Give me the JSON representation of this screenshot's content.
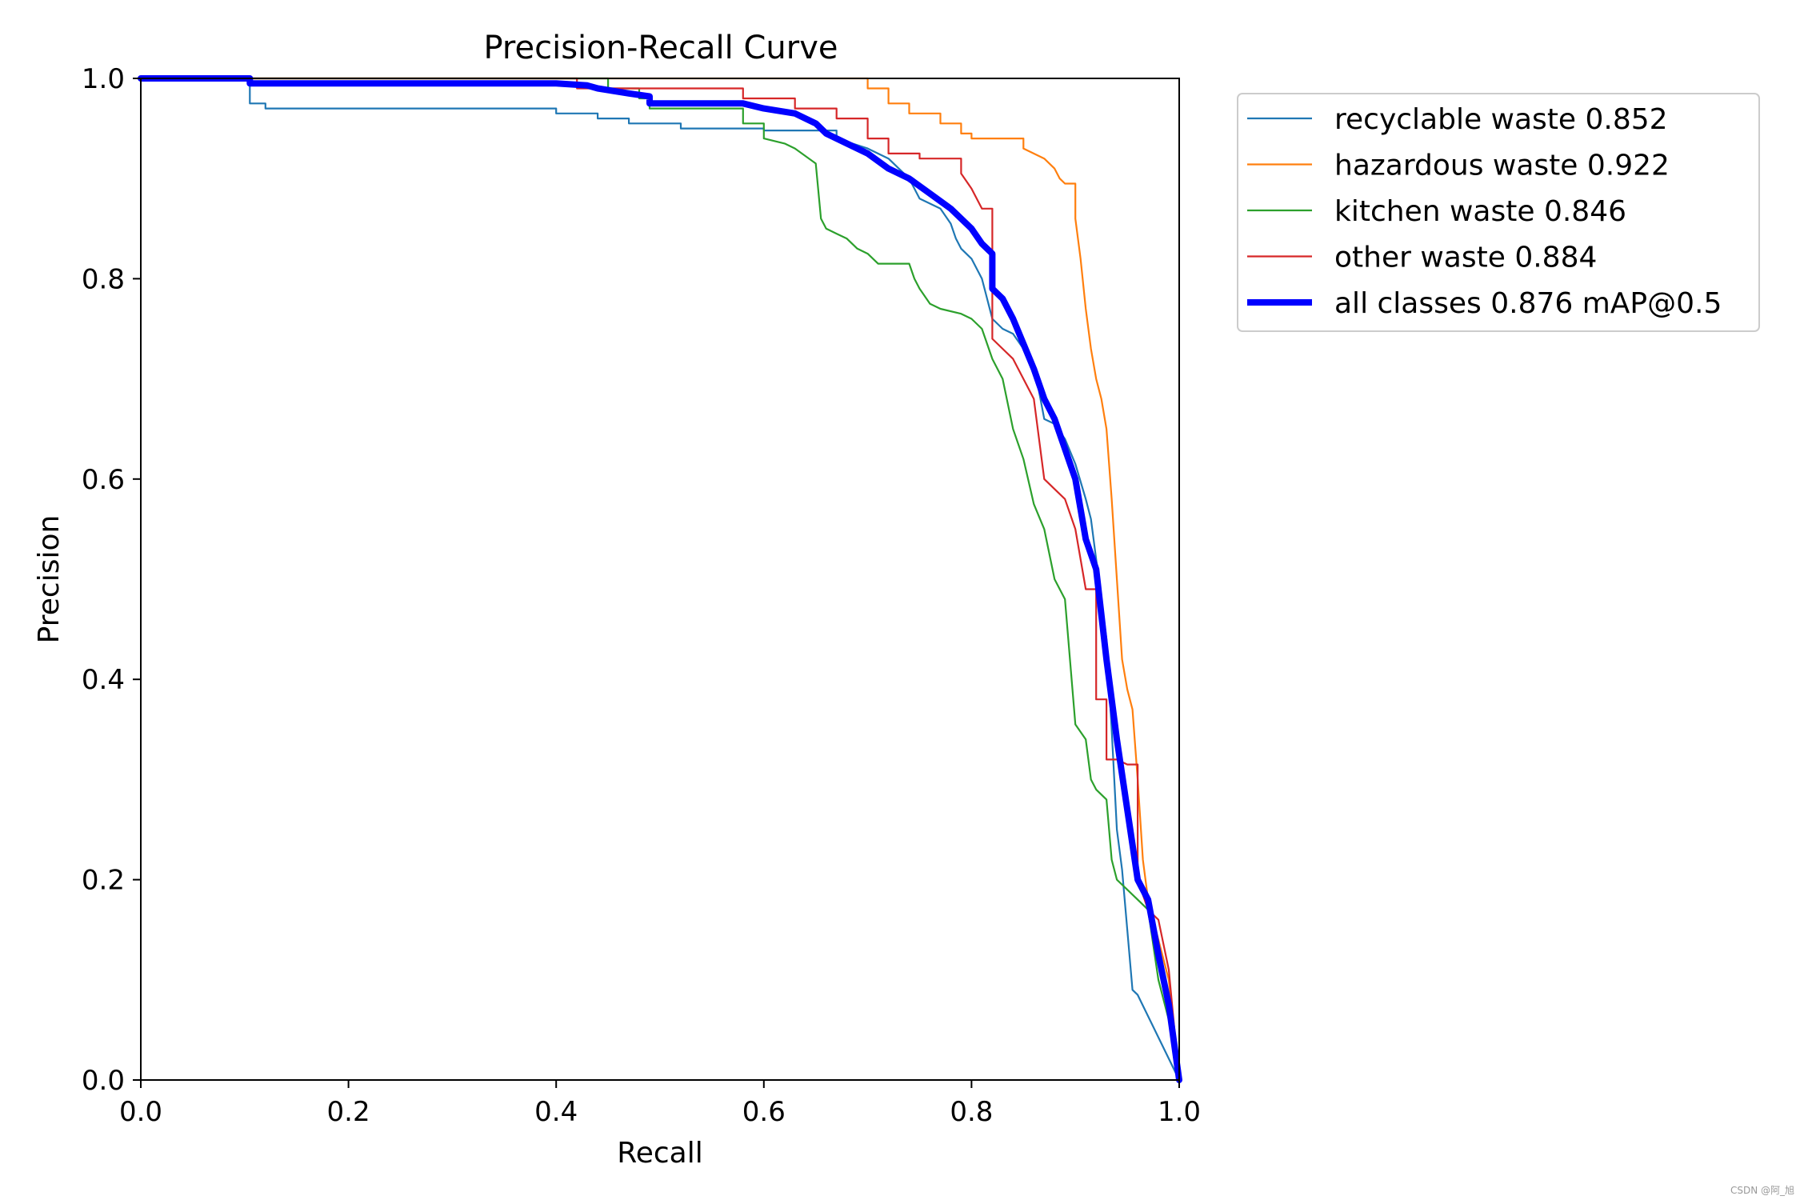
{
  "chart_data": {
    "type": "line",
    "title": "Precision-Recall Curve",
    "xlabel": "Recall",
    "ylabel": "Precision",
    "xlim": [
      0,
      1
    ],
    "ylim": [
      0,
      1
    ],
    "grid": false,
    "legend_position": "outside-top-right",
    "x_ticks": [
      0.0,
      0.2,
      0.4,
      0.6,
      0.8,
      1.0
    ],
    "y_ticks": [
      0.0,
      0.2,
      0.4,
      0.6,
      0.8,
      1.0
    ],
    "x_tick_labels": [
      "0.0",
      "0.2",
      "0.4",
      "0.6",
      "0.8",
      "1.0"
    ],
    "y_tick_labels": [
      "0.0",
      "0.2",
      "0.4",
      "0.6",
      "0.8",
      "1.0"
    ],
    "series": [
      {
        "name": "recyclable waste 0.852",
        "color": "#1f77b4",
        "emphasis": "normal",
        "points": [
          [
            0,
            1
          ],
          [
            0.105,
            1
          ],
          [
            0.105,
            0.975
          ],
          [
            0.12,
            0.975
          ],
          [
            0.12,
            0.97
          ],
          [
            0.4,
            0.97
          ],
          [
            0.4,
            0.965
          ],
          [
            0.44,
            0.965
          ],
          [
            0.44,
            0.96
          ],
          [
            0.47,
            0.96
          ],
          [
            0.47,
            0.955
          ],
          [
            0.52,
            0.955
          ],
          [
            0.52,
            0.95
          ],
          [
            0.6,
            0.95
          ],
          [
            0.6,
            0.948
          ],
          [
            0.67,
            0.948
          ],
          [
            0.67,
            0.94
          ],
          [
            0.7,
            0.93
          ],
          [
            0.72,
            0.92
          ],
          [
            0.74,
            0.9
          ],
          [
            0.75,
            0.88
          ],
          [
            0.76,
            0.875
          ],
          [
            0.77,
            0.87
          ],
          [
            0.78,
            0.855
          ],
          [
            0.785,
            0.84
          ],
          [
            0.79,
            0.83
          ],
          [
            0.8,
            0.82
          ],
          [
            0.81,
            0.8
          ],
          [
            0.815,
            0.78
          ],
          [
            0.82,
            0.76
          ],
          [
            0.83,
            0.75
          ],
          [
            0.84,
            0.745
          ],
          [
            0.85,
            0.73
          ],
          [
            0.86,
            0.715
          ],
          [
            0.87,
            0.66
          ],
          [
            0.88,
            0.655
          ],
          [
            0.89,
            0.64
          ],
          [
            0.9,
            0.615
          ],
          [
            0.91,
            0.58
          ],
          [
            0.915,
            0.56
          ],
          [
            0.92,
            0.52
          ],
          [
            0.93,
            0.44
          ],
          [
            0.935,
            0.35
          ],
          [
            0.94,
            0.25
          ],
          [
            0.945,
            0.21
          ],
          [
            0.95,
            0.15
          ],
          [
            0.955,
            0.09
          ],
          [
            0.96,
            0.085
          ],
          [
            1,
            0
          ]
        ]
      },
      {
        "name": "hazardous waste 0.922",
        "color": "#ff7f0e",
        "emphasis": "normal",
        "points": [
          [
            0,
            1
          ],
          [
            0.7,
            1
          ],
          [
            0.7,
            0.99
          ],
          [
            0.72,
            0.99
          ],
          [
            0.72,
            0.975
          ],
          [
            0.74,
            0.975
          ],
          [
            0.74,
            0.965
          ],
          [
            0.77,
            0.965
          ],
          [
            0.77,
            0.955
          ],
          [
            0.79,
            0.955
          ],
          [
            0.79,
            0.945
          ],
          [
            0.8,
            0.945
          ],
          [
            0.8,
            0.94
          ],
          [
            0.85,
            0.94
          ],
          [
            0.85,
            0.93
          ],
          [
            0.87,
            0.92
          ],
          [
            0.88,
            0.91
          ],
          [
            0.885,
            0.9
          ],
          [
            0.89,
            0.895
          ],
          [
            0.9,
            0.895
          ],
          [
            0.9,
            0.86
          ],
          [
            0.905,
            0.82
          ],
          [
            0.91,
            0.77
          ],
          [
            0.915,
            0.73
          ],
          [
            0.92,
            0.7
          ],
          [
            0.925,
            0.68
          ],
          [
            0.93,
            0.65
          ],
          [
            0.935,
            0.58
          ],
          [
            0.94,
            0.5
          ],
          [
            0.945,
            0.42
          ],
          [
            0.95,
            0.39
          ],
          [
            0.955,
            0.37
          ],
          [
            0.96,
            0.3
          ],
          [
            0.965,
            0.22
          ],
          [
            0.97,
            0.18
          ],
          [
            0.975,
            0.16
          ],
          [
            0.98,
            0.14
          ],
          [
            0.99,
            0.1
          ],
          [
            1,
            0
          ]
        ]
      },
      {
        "name": "kitchen waste 0.846",
        "color": "#2ca02c",
        "emphasis": "normal",
        "points": [
          [
            0,
            1
          ],
          [
            0.45,
            1
          ],
          [
            0.45,
            0.99
          ],
          [
            0.48,
            0.99
          ],
          [
            0.48,
            0.98
          ],
          [
            0.49,
            0.98
          ],
          [
            0.49,
            0.97
          ],
          [
            0.58,
            0.97
          ],
          [
            0.58,
            0.955
          ],
          [
            0.6,
            0.955
          ],
          [
            0.6,
            0.94
          ],
          [
            0.62,
            0.935
          ],
          [
            0.63,
            0.93
          ],
          [
            0.65,
            0.915
          ],
          [
            0.655,
            0.86
          ],
          [
            0.66,
            0.85
          ],
          [
            0.67,
            0.845
          ],
          [
            0.68,
            0.84
          ],
          [
            0.69,
            0.83
          ],
          [
            0.7,
            0.825
          ],
          [
            0.71,
            0.815
          ],
          [
            0.74,
            0.815
          ],
          [
            0.745,
            0.8
          ],
          [
            0.75,
            0.79
          ],
          [
            0.76,
            0.775
          ],
          [
            0.77,
            0.77
          ],
          [
            0.79,
            0.765
          ],
          [
            0.8,
            0.76
          ],
          [
            0.81,
            0.75
          ],
          [
            0.82,
            0.72
          ],
          [
            0.83,
            0.7
          ],
          [
            0.84,
            0.65
          ],
          [
            0.85,
            0.62
          ],
          [
            0.86,
            0.575
          ],
          [
            0.87,
            0.55
          ],
          [
            0.88,
            0.5
          ],
          [
            0.89,
            0.48
          ],
          [
            0.9,
            0.355
          ],
          [
            0.91,
            0.34
          ],
          [
            0.915,
            0.3
          ],
          [
            0.92,
            0.29
          ],
          [
            0.93,
            0.28
          ],
          [
            0.935,
            0.22
          ],
          [
            0.94,
            0.2
          ],
          [
            0.95,
            0.19
          ],
          [
            0.96,
            0.18
          ],
          [
            0.97,
            0.17
          ],
          [
            0.98,
            0.1
          ],
          [
            0.99,
            0.06
          ],
          [
            1,
            0
          ]
        ]
      },
      {
        "name": "other waste 0.884",
        "color": "#d62728",
        "emphasis": "normal",
        "points": [
          [
            0,
            1
          ],
          [
            0.42,
            1
          ],
          [
            0.42,
            0.99
          ],
          [
            0.58,
            0.99
          ],
          [
            0.58,
            0.98
          ],
          [
            0.63,
            0.98
          ],
          [
            0.63,
            0.97
          ],
          [
            0.67,
            0.97
          ],
          [
            0.67,
            0.96
          ],
          [
            0.7,
            0.96
          ],
          [
            0.7,
            0.94
          ],
          [
            0.72,
            0.94
          ],
          [
            0.72,
            0.925
          ],
          [
            0.75,
            0.925
          ],
          [
            0.75,
            0.92
          ],
          [
            0.79,
            0.92
          ],
          [
            0.79,
            0.905
          ],
          [
            0.8,
            0.89
          ],
          [
            0.81,
            0.87
          ],
          [
            0.82,
            0.87
          ],
          [
            0.82,
            0.74
          ],
          [
            0.83,
            0.73
          ],
          [
            0.84,
            0.72
          ],
          [
            0.85,
            0.7
          ],
          [
            0.86,
            0.68
          ],
          [
            0.87,
            0.6
          ],
          [
            0.88,
            0.59
          ],
          [
            0.89,
            0.58
          ],
          [
            0.9,
            0.55
          ],
          [
            0.91,
            0.49
          ],
          [
            0.92,
            0.49
          ],
          [
            0.92,
            0.38
          ],
          [
            0.93,
            0.38
          ],
          [
            0.93,
            0.32
          ],
          [
            0.94,
            0.32
          ],
          [
            0.95,
            0.315
          ],
          [
            0.96,
            0.315
          ],
          [
            0.96,
            0.2
          ],
          [
            0.97,
            0.17
          ],
          [
            0.98,
            0.16
          ],
          [
            0.99,
            0.11
          ],
          [
            1,
            0
          ]
        ]
      },
      {
        "name": "all classes 0.876 mAP@0.5",
        "color": "#0000ff",
        "emphasis": "bold",
        "points": [
          [
            0,
            1
          ],
          [
            0.105,
            1
          ],
          [
            0.105,
            0.995
          ],
          [
            0.4,
            0.995
          ],
          [
            0.43,
            0.993
          ],
          [
            0.44,
            0.99
          ],
          [
            0.47,
            0.985
          ],
          [
            0.49,
            0.982
          ],
          [
            0.49,
            0.975
          ],
          [
            0.58,
            0.975
          ],
          [
            0.6,
            0.97
          ],
          [
            0.63,
            0.965
          ],
          [
            0.65,
            0.955
          ],
          [
            0.66,
            0.945
          ],
          [
            0.68,
            0.935
          ],
          [
            0.7,
            0.925
          ],
          [
            0.72,
            0.91
          ],
          [
            0.74,
            0.9
          ],
          [
            0.76,
            0.885
          ],
          [
            0.78,
            0.87
          ],
          [
            0.8,
            0.85
          ],
          [
            0.81,
            0.835
          ],
          [
            0.82,
            0.825
          ],
          [
            0.82,
            0.79
          ],
          [
            0.83,
            0.78
          ],
          [
            0.84,
            0.76
          ],
          [
            0.85,
            0.735
          ],
          [
            0.86,
            0.71
          ],
          [
            0.87,
            0.68
          ],
          [
            0.88,
            0.66
          ],
          [
            0.89,
            0.63
          ],
          [
            0.9,
            0.6
          ],
          [
            0.91,
            0.54
          ],
          [
            0.92,
            0.51
          ],
          [
            0.93,
            0.42
          ],
          [
            0.94,
            0.34
          ],
          [
            0.95,
            0.27
          ],
          [
            0.96,
            0.2
          ],
          [
            0.97,
            0.18
          ],
          [
            0.98,
            0.125
          ],
          [
            0.99,
            0.075
          ],
          [
            1,
            0
          ]
        ]
      }
    ]
  },
  "watermark": "CSDN @阿_旭"
}
